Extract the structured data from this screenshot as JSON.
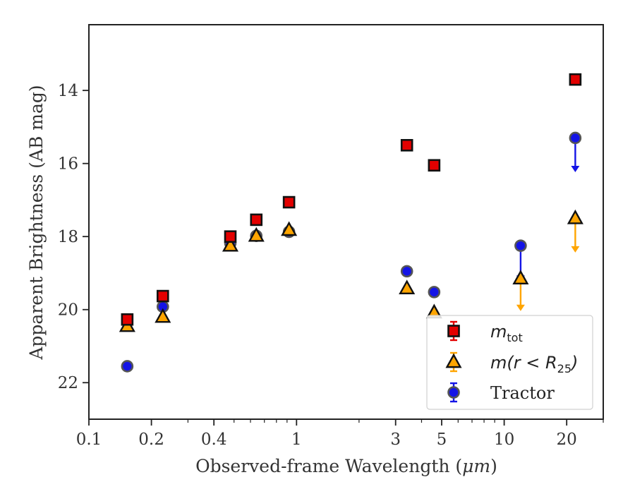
{
  "chart_data": {
    "type": "scatter",
    "xlabel_main": "Observed-frame Wavelength (",
    "xlabel_unit": "μm",
    "xlabel_end": ")",
    "ylabel": "Apparent Brightness (AB mag)",
    "xscale": "log",
    "xlim": [
      0.1,
      30
    ],
    "ylim": [
      23,
      12.2
    ],
    "y_inverted": true,
    "x_ticks": [
      {
        "value": 0.1,
        "label": "0.1"
      },
      {
        "value": 0.2,
        "label": "0.2"
      },
      {
        "value": 0.4,
        "label": "0.4"
      },
      {
        "value": 1,
        "label": "1"
      },
      {
        "value": 3,
        "label": "3"
      },
      {
        "value": 5,
        "label": "5"
      },
      {
        "value": 10,
        "label": "10"
      },
      {
        "value": 20,
        "label": "20"
      }
    ],
    "y_ticks": [
      {
        "value": 14,
        "label": "14"
      },
      {
        "value": 16,
        "label": "16"
      },
      {
        "value": 18,
        "label": "18"
      },
      {
        "value": 20,
        "label": "20"
      },
      {
        "value": 22,
        "label": "22"
      }
    ],
    "legend_placement": "lower-right",
    "series": [
      {
        "name": "m_tot",
        "legend_main": "m",
        "legend_sub": "tot",
        "marker": "square",
        "color": "#e30000",
        "edge": "#111111",
        "points": [
          {
            "x": 0.153,
            "y": 20.27
          },
          {
            "x": 0.227,
            "y": 19.63
          },
          {
            "x": 0.48,
            "y": 18.0
          },
          {
            "x": 0.64,
            "y": 17.54
          },
          {
            "x": 0.92,
            "y": 17.06
          },
          {
            "x": 3.4,
            "y": 15.5
          },
          {
            "x": 4.6,
            "y": 16.05
          },
          {
            "x": 22,
            "y": 13.7
          }
        ]
      },
      {
        "name": "m(r < R_25)",
        "legend_main": "m(r < R",
        "legend_sub": "25",
        "legend_end": ")",
        "marker": "triangle",
        "color": "#ffa500",
        "edge": "#111111",
        "points": [
          {
            "x": 0.153,
            "y": 20.45
          },
          {
            "x": 0.227,
            "y": 20.2
          },
          {
            "x": 0.48,
            "y": 18.25
          },
          {
            "x": 0.64,
            "y": 17.98
          },
          {
            "x": 0.92,
            "y": 17.82
          },
          {
            "x": 3.4,
            "y": 19.42
          },
          {
            "x": 4.6,
            "y": 20.08
          },
          {
            "x": 12,
            "y": 19.15,
            "upper_limit_to": 20.0
          },
          {
            "x": 22,
            "y": 17.5,
            "upper_limit_to": 18.4
          }
        ]
      },
      {
        "name": "Tractor",
        "legend_main": "Tractor",
        "marker": "circle",
        "color": "#1414e6",
        "edge": "#555555",
        "points": [
          {
            "x": 0.153,
            "y": 21.55
          },
          {
            "x": 0.227,
            "y": 19.92
          },
          {
            "x": 0.48,
            "y": 18.18
          },
          {
            "x": 0.64,
            "y": 17.98
          },
          {
            "x": 0.92,
            "y": 17.87
          },
          {
            "x": 3.4,
            "y": 18.95
          },
          {
            "x": 4.6,
            "y": 19.52
          },
          {
            "x": 12,
            "y": 18.25,
            "upper_limit_to": 19.2
          },
          {
            "x": 22,
            "y": 15.3,
            "upper_limit_to": 16.2
          }
        ]
      }
    ]
  }
}
